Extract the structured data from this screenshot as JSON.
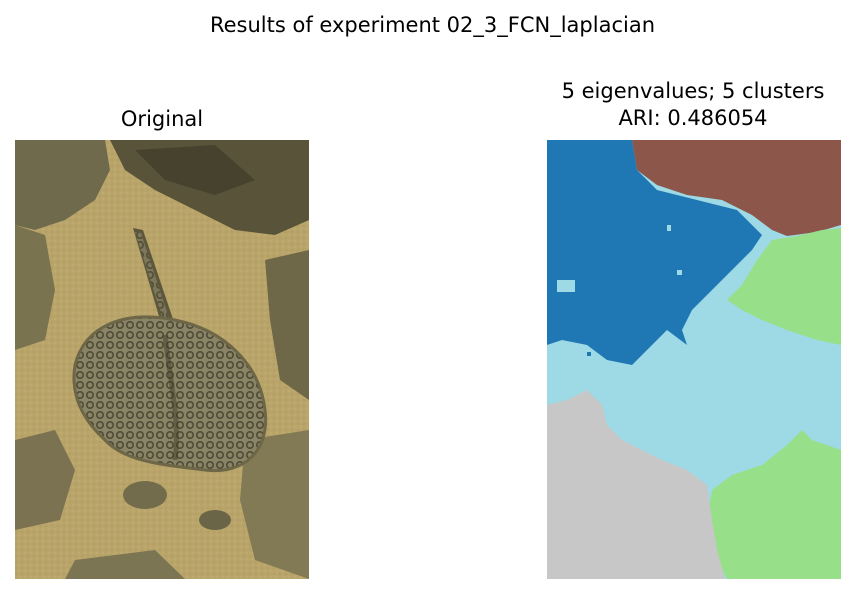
{
  "figure": {
    "suptitle": "Results of experiment 02_3_FCN_laplacian"
  },
  "left_panel": {
    "title": "Original",
    "image": "underwater-stingray-photo"
  },
  "right_panel": {
    "title_line1": "5 eigenvalues; 5 clusters",
    "title_line2": "ARI: 0.486054",
    "image": "segmentation-map",
    "cluster_colors": [
      "#1f77b4",
      "#8c564b",
      "#98df8a",
      "#9edae5",
      "#c7c7c7"
    ]
  }
}
